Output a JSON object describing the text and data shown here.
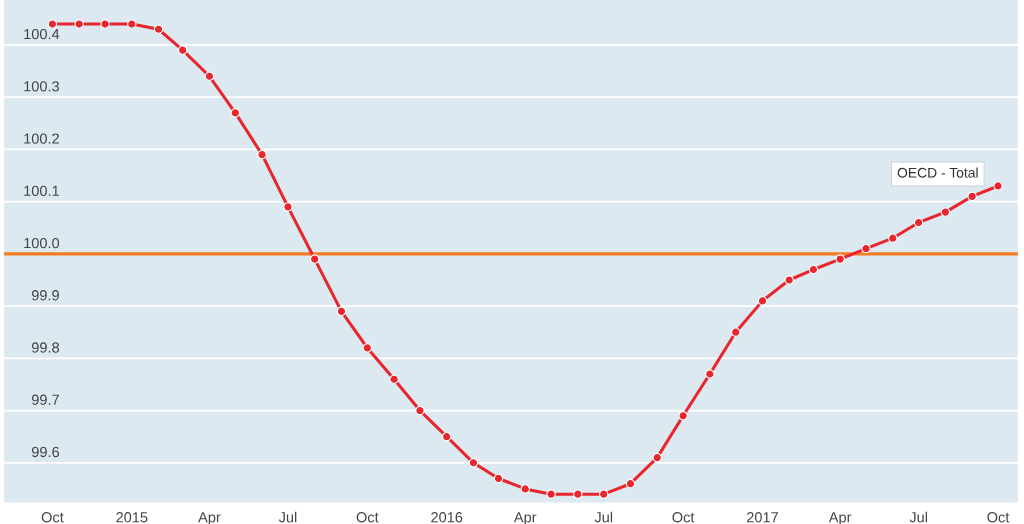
{
  "chart_data": {
    "type": "line",
    "x": [
      "2014-10",
      "2014-11",
      "2014-12",
      "2015-01",
      "2015-02",
      "2015-03",
      "2015-04",
      "2015-05",
      "2015-06",
      "2015-07",
      "2015-08",
      "2015-09",
      "2015-10",
      "2015-11",
      "2015-12",
      "2016-01",
      "2016-02",
      "2016-03",
      "2016-04",
      "2016-05",
      "2016-06",
      "2016-07",
      "2016-08",
      "2016-09",
      "2016-10",
      "2016-11",
      "2016-12",
      "2017-01",
      "2017-02",
      "2017-03",
      "2017-04",
      "2017-05",
      "2017-06",
      "2017-07",
      "2017-08",
      "2017-09",
      "2017-10"
    ],
    "series": [
      {
        "name": "OECD - Total",
        "color": "#e8262e",
        "values": [
          100.44,
          100.44,
          100.44,
          100.44,
          100.43,
          100.39,
          100.34,
          100.27,
          100.19,
          100.09,
          99.99,
          99.89,
          99.82,
          99.76,
          99.7,
          99.65,
          99.6,
          99.57,
          99.55,
          99.54,
          99.54,
          99.54,
          99.56,
          99.61,
          99.69,
          99.77,
          99.85,
          99.91,
          99.95,
          99.97,
          99.99,
          100.01,
          100.03,
          100.06,
          100.08,
          100.11,
          100.13
        ]
      }
    ],
    "ref_lines": [
      {
        "axis": "y",
        "value": 100.0,
        "color": "#f57b20"
      }
    ],
    "xlim": [
      "2014-08-06",
      "2017-10-24"
    ],
    "xticks": [
      {
        "value": "2014-10",
        "label": "Oct"
      },
      {
        "value": "2015-01",
        "label": "2015"
      },
      {
        "value": "2015-04",
        "label": "Apr"
      },
      {
        "value": "2015-07",
        "label": "Jul"
      },
      {
        "value": "2015-10",
        "label": "Oct"
      },
      {
        "value": "2016-01",
        "label": "2016"
      },
      {
        "value": "2016-04",
        "label": "Apr"
      },
      {
        "value": "2016-07",
        "label": "Jul"
      },
      {
        "value": "2016-10",
        "label": "Oct"
      },
      {
        "value": "2017-01",
        "label": "2017"
      },
      {
        "value": "2017-04",
        "label": "Apr"
      },
      {
        "value": "2017-07",
        "label": "Jul"
      },
      {
        "value": "2017-10",
        "label": "Oct"
      }
    ],
    "ylim": [
      99.525,
      100.486
    ],
    "yticks": [
      {
        "value": 99.6,
        "label": "99.6"
      },
      {
        "value": 99.7,
        "label": "99.7"
      },
      {
        "value": 99.8,
        "label": "99.8"
      },
      {
        "value": 99.9,
        "label": "99.9"
      },
      {
        "value": 100.0,
        "label": "100.0"
      },
      {
        "value": 100.1,
        "label": "100.1"
      },
      {
        "value": 100.2,
        "label": "100.2"
      },
      {
        "value": 100.3,
        "label": "100.3"
      },
      {
        "value": 100.4,
        "label": "100.4"
      }
    ],
    "grid": "y",
    "marker": "circle",
    "line_style": "solid",
    "legend": false
  }
}
